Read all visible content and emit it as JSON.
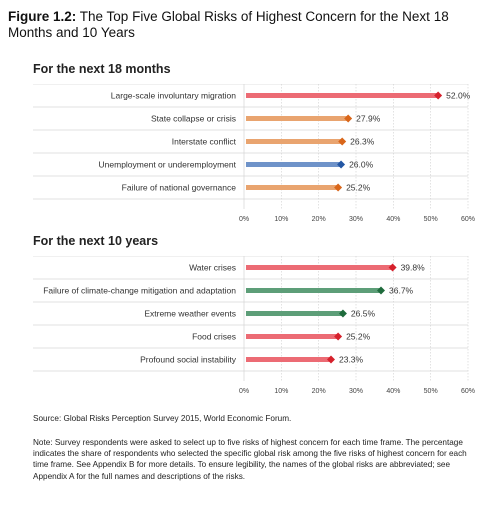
{
  "figure": {
    "label": "Figure 1.2:",
    "title": "The Top Five Global Risks of Highest Concern for the Next 18 Months and 10 Years"
  },
  "chart_data": [
    {
      "type": "bar",
      "title": "For the next 18 months",
      "categories": [
        "Large-scale involuntary migration",
        "State collapse or crisis",
        "Interstate conflict",
        "Unemployment or underemployment",
        "Failure of national governance"
      ],
      "values": [
        52.0,
        27.9,
        26.3,
        26.0,
        25.2
      ],
      "value_labels": [
        "52.0%",
        "27.9%",
        "26.3%",
        "26.0%",
        "25.2%"
      ],
      "bar_colors": [
        "#ec6b74",
        "#e9a46f",
        "#e9a46f",
        "#6f93c9",
        "#e9a46f"
      ],
      "marker_colors": [
        "#d6212c",
        "#d9661a",
        "#d9661a",
        "#2457a4",
        "#d9661a"
      ],
      "xlim": [
        0,
        60
      ],
      "xticks": [
        "0%",
        "10%",
        "20%",
        "30%",
        "40%",
        "50%",
        "60%"
      ],
      "grid": true
    },
    {
      "type": "bar",
      "title": "For the next 10 years",
      "categories": [
        "Water crises",
        "Failure of climate-change mitigation and adaptation",
        "Extreme weather events",
        "Food crises",
        "Profound social instability"
      ],
      "values": [
        39.8,
        36.7,
        26.5,
        25.2,
        23.3
      ],
      "value_labels": [
        "39.8%",
        "36.7%",
        "26.5%",
        "25.2%",
        "23.3%"
      ],
      "bar_colors": [
        "#ec6b74",
        "#5d9e78",
        "#5d9e78",
        "#ec6b74",
        "#ec6b74"
      ],
      "marker_colors": [
        "#d6212c",
        "#1f6b3c",
        "#1f6b3c",
        "#d6212c",
        "#d6212c"
      ],
      "xlim": [
        0,
        60
      ],
      "xticks": [
        "0%",
        "10%",
        "20%",
        "30%",
        "40%",
        "50%",
        "60%"
      ],
      "grid": true
    }
  ],
  "source": "Source: Global Risks Perception Survey 2015, World Economic Forum.",
  "note": "Note: Survey respondents were asked to select up to five risks of highest concern for each time frame. The percentage indicates the share of respondents who selected the specific global risk among the five risks of highest concern for each time frame. See Appendix B for more details. To ensure legibility, the names of the global risks are abbreviated; see Appendix A for the full names and descriptions of the risks."
}
